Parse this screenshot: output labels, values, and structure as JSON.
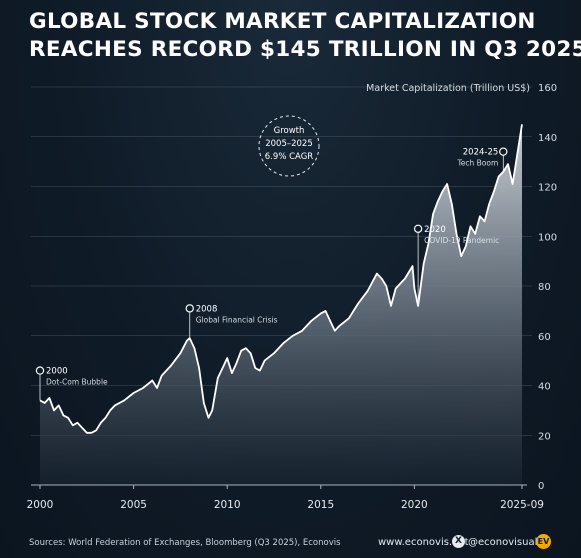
{
  "title_line1": "GLOBAL STOCK MARKET CAPITALIZATION",
  "title_line2": "REACHES RECORD $145 TRILLION IN Q3 2025",
  "footer": {
    "source": "Sources: World Federation of Exchanges, Bloomberg (Q3 2025), Econovis",
    "website": "www.econovis.net",
    "x_glyph": "X",
    "handle": "@econovisuals",
    "logo_text": "EV"
  },
  "colors": {
    "background": "#0f1b27",
    "line": "#ffffff",
    "area_top": "#c9cfd5",
    "area_bottom": "#1a2633",
    "grid": "#5b6875",
    "logo": "#f2a900"
  },
  "chart_data": {
    "type": "area",
    "ylabel": "Market Capitalization (Trillion US$)",
    "xlim": [
      2000,
      2025.75
    ],
    "ylim": [
      0,
      160
    ],
    "y_ticks": [
      0,
      20,
      40,
      60,
      80,
      100,
      120,
      140,
      160
    ],
    "x_ticks": [
      {
        "value": 2000,
        "label": "2000"
      },
      {
        "value": 2005,
        "label": "2005"
      },
      {
        "value": 2010,
        "label": "2010"
      },
      {
        "value": 2015,
        "label": "2015"
      },
      {
        "value": 2020,
        "label": "2020"
      },
      {
        "value": 2025.75,
        "label": "2025-09"
      }
    ],
    "grid": true,
    "series": [
      {
        "x": [
          2000.0,
          2000.25,
          2000.5,
          2000.75,
          2001.0,
          2001.25,
          2001.5,
          2001.75,
          2002.0,
          2002.25,
          2002.5,
          2002.75,
          2003.0,
          2003.25,
          2003.5,
          2003.75,
          2004.0,
          2004.5,
          2005.0,
          2005.5,
          2006.0,
          2006.25,
          2006.5,
          2007.0,
          2007.5,
          2007.85,
          2008.0,
          2008.25,
          2008.5,
          2008.75,
          2009.0,
          2009.2,
          2009.5,
          2009.75,
          2010.0,
          2010.25,
          2010.5,
          2010.75,
          2011.0,
          2011.25,
          2011.5,
          2011.75,
          2012.0,
          2012.5,
          2013.0,
          2013.5,
          2014.0,
          2014.5,
          2015.0,
          2015.25,
          2015.5,
          2015.75,
          2016.0,
          2016.5,
          2017.0,
          2017.5,
          2018.0,
          2018.25,
          2018.5,
          2018.75,
          2019.0,
          2019.5,
          2019.9,
          2020.0,
          2020.2,
          2020.5,
          2020.75,
          2021.0,
          2021.25,
          2021.5,
          2021.75,
          2022.0,
          2022.25,
          2022.5,
          2022.75,
          2023.0,
          2023.25,
          2023.5,
          2023.75,
          2024.0,
          2024.25,
          2024.5,
          2024.75,
          2025.0,
          2025.25,
          2025.5,
          2025.75
        ],
        "y": [
          34,
          33,
          35,
          30,
          32,
          28,
          27,
          24,
          25,
          23,
          21,
          21,
          22,
          25,
          27,
          30,
          32,
          34,
          37,
          39,
          42,
          39,
          44,
          48,
          53,
          58,
          59,
          55,
          47,
          33,
          27,
          30,
          43,
          47,
          51,
          45,
          49,
          54,
          55,
          53,
          47,
          46,
          50,
          53,
          57,
          60,
          62,
          66,
          69,
          70,
          66,
          62,
          64,
          67,
          73,
          78,
          85,
          83,
          80,
          72,
          79,
          83,
          88,
          79,
          72,
          89,
          97,
          109,
          114,
          118,
          121,
          113,
          101,
          92,
          96,
          104,
          101,
          108,
          106,
          113,
          118,
          124,
          126,
          129,
          121,
          133,
          145
        ]
      }
    ],
    "annotations": [
      {
        "x": 2000.0,
        "y": 46,
        "label": "2000",
        "sublabel": "Dot-Com Bubble"
      },
      {
        "x": 2008.0,
        "y": 71,
        "label": "2008",
        "sublabel": "Global Financial Crisis"
      },
      {
        "x": 2020.2,
        "y": 103,
        "label": "2020",
        "sublabel": "COVID-19 Pandemic"
      },
      {
        "x": 2024.75,
        "y": 134,
        "label": "2024-25",
        "sublabel": "Tech Boom"
      }
    ],
    "callout": {
      "line1": "Growth",
      "line2": "2005–2025",
      "line3": "6.9% CAGR"
    }
  }
}
